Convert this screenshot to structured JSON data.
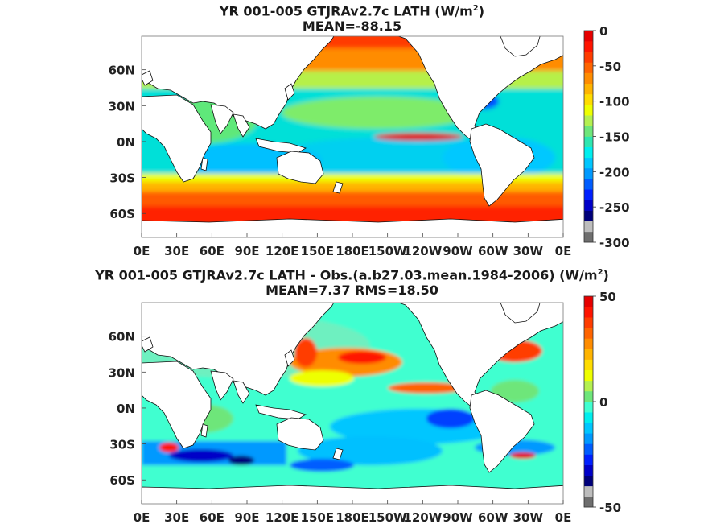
{
  "chart_data": [
    {
      "type": "heatmap",
      "title_prefix": "YR 001-005 GTJRAv2.7c  LATH (W/m",
      "title_sup": "2",
      "title_suffix": ")",
      "subtitle": "MEAN=-88.15",
      "x_ticks": [
        "0E",
        "30E",
        "60E",
        "90E",
        "120E",
        "150E",
        "180E",
        "150W",
        "120W",
        "90W",
        "60W",
        "30W",
        "0E"
      ],
      "y_ticks": [
        "60N",
        "30N",
        "0N",
        "30S",
        "60S"
      ],
      "y_tick_lat": [
        60,
        30,
        0,
        -30,
        -60
      ],
      "xlim": [
        0,
        360
      ],
      "ylim": [
        -80,
        88
      ],
      "colorbar": {
        "ticks": [
          "0",
          "-50",
          "-100",
          "-150",
          "-200",
          "-250",
          "-300"
        ],
        "range": [
          -300,
          0
        ],
        "colors": [
          "#6e6e6e",
          "#bdbdbd",
          "#00007a",
          "#0000c8",
          "#0020ff",
          "#005dff",
          "#0099ff",
          "#00c6ff",
          "#00eeee",
          "#2ee6b0",
          "#6ee67a",
          "#b4f050",
          "#eeff00",
          "#ffdc00",
          "#ffb400",
          "#ff8c00",
          "#ff6400",
          "#ff3c00",
          "#ff1400",
          "#e60000"
        ]
      }
    },
    {
      "type": "heatmap",
      "title_prefix": "YR 001-005 GTJRAv2.7c LATH - Obs.(a.b27.03.mean.1984-2006) (W/m",
      "title_sup": "2",
      "title_suffix": ")",
      "subtitle": "MEAN=7.37 RMS=18.50",
      "x_ticks": [
        "0E",
        "30E",
        "60E",
        "90E",
        "120E",
        "150E",
        "180E",
        "150W",
        "120W",
        "90W",
        "60W",
        "30W",
        "0E"
      ],
      "y_ticks": [
        "60N",
        "30N",
        "0N",
        "30S",
        "60S"
      ],
      "y_tick_lat": [
        60,
        30,
        0,
        -30,
        -60
      ],
      "xlim": [
        0,
        360
      ],
      "ylim": [
        -80,
        88
      ],
      "colorbar": {
        "ticks": [
          "50",
          "0",
          "-50"
        ],
        "range": [
          -50,
          50
        ],
        "colors": [
          "#6e6e6e",
          "#bdbdbd",
          "#00007a",
          "#0000c8",
          "#0020ff",
          "#005dff",
          "#0099ff",
          "#00c6ff",
          "#00eeee",
          "#40ffd0",
          "#6ee67a",
          "#b4f050",
          "#eeff00",
          "#ffdc00",
          "#ffb400",
          "#ff8c00",
          "#ff6400",
          "#ff3c00",
          "#ff1400",
          "#e60000"
        ]
      }
    }
  ]
}
